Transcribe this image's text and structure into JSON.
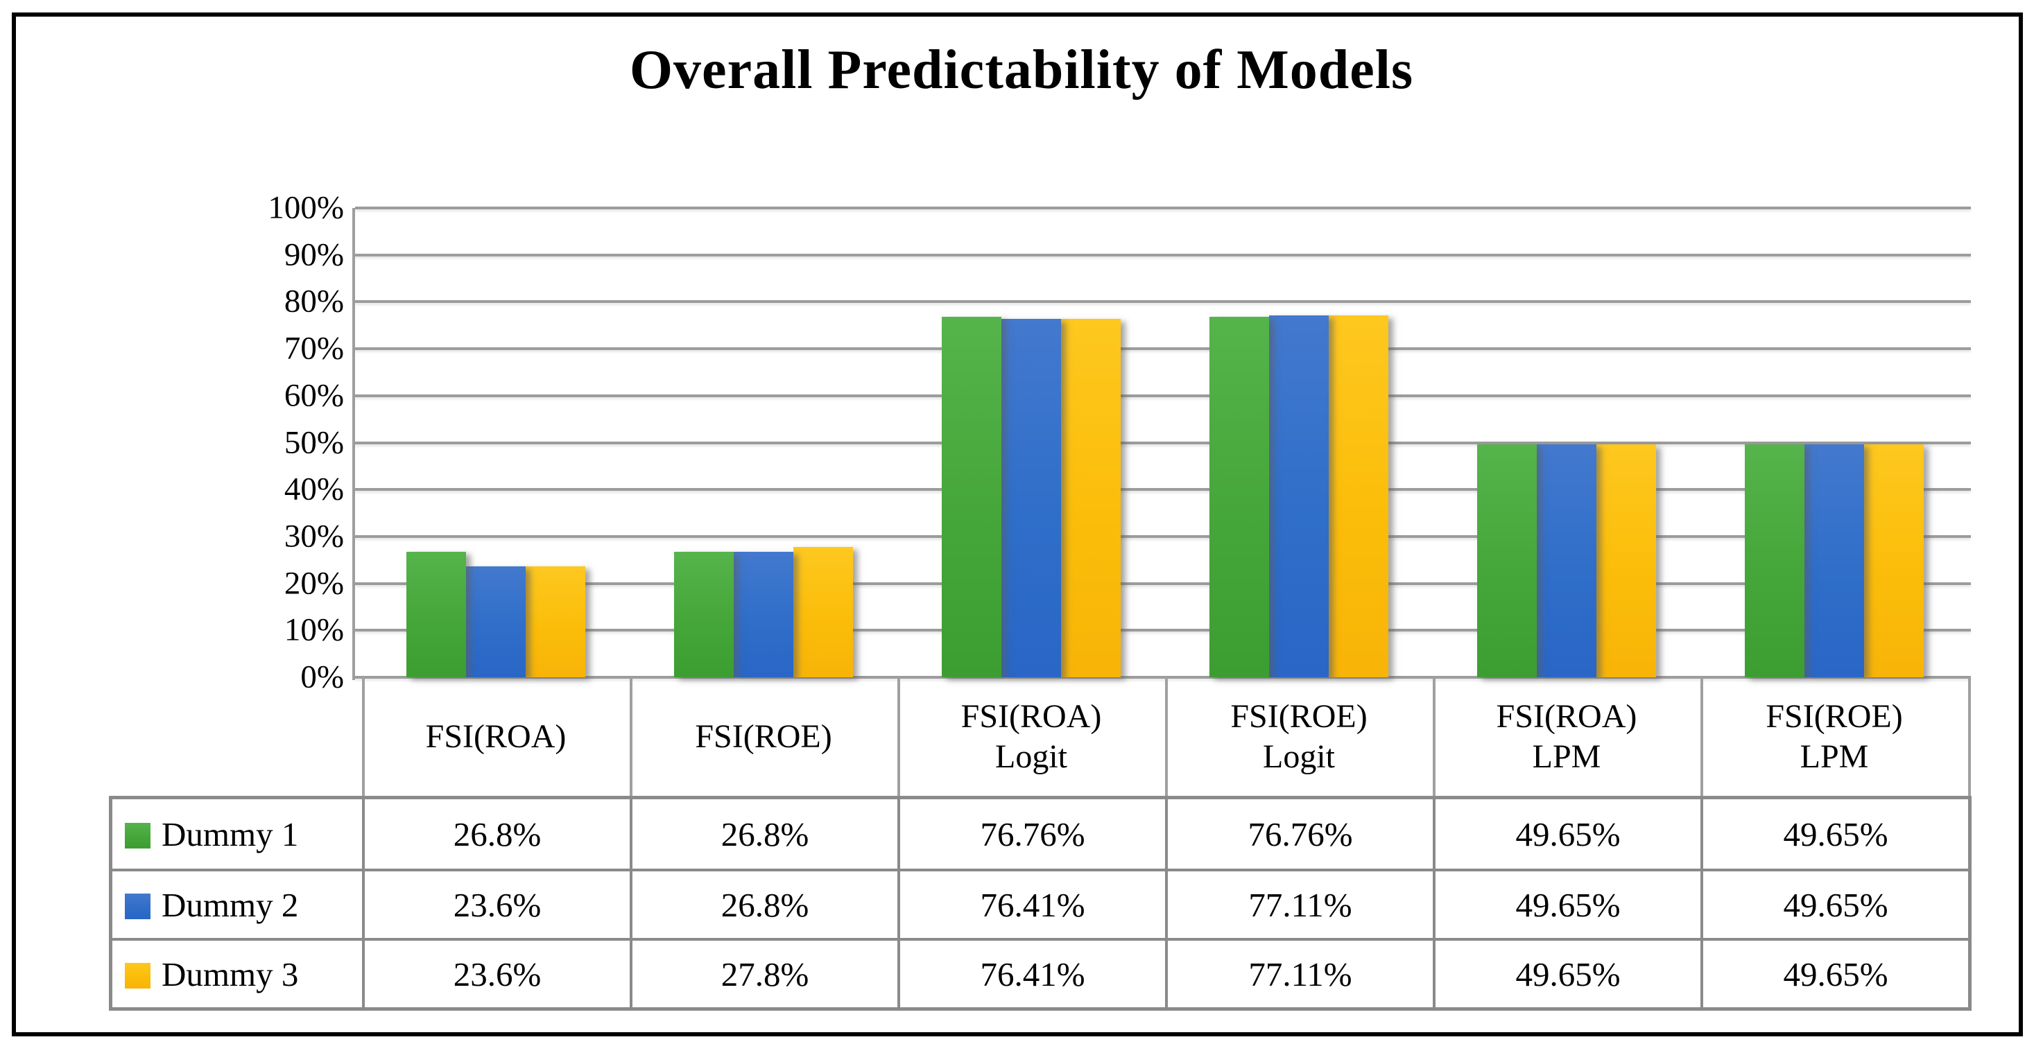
{
  "chart": {
    "title": "Overall Predictability of Models"
  },
  "chart_data": {
    "type": "bar",
    "title": "Overall Predictability of Models",
    "xlabel": "",
    "ylabel": "",
    "ylim": [
      0,
      100
    ],
    "ytick_step_percent": 10,
    "yticks": [
      "100%",
      "90%",
      "80%",
      "70%",
      "60%",
      "50%",
      "40%",
      "30%",
      "20%",
      "10%",
      "0%"
    ],
    "grid": true,
    "legend_position": "table-left",
    "categories": [
      "FSI(ROA)",
      "FSI(ROE)",
      "FSI(ROA) Logit",
      "FSI(ROE) Logit",
      "FSI(ROA) LPM",
      "FSI(ROE) LPM"
    ],
    "series": [
      {
        "name": "Dummy 1",
        "values": [
          26.8,
          26.8,
          76.76,
          76.76,
          49.65,
          49.65
        ],
        "color": "#45A639",
        "color_top": "#55B44B",
        "color_bottom": "#3C9E31"
      },
      {
        "name": "Dummy 2",
        "values": [
          23.6,
          26.8,
          76.41,
          77.11,
          49.65,
          49.65
        ],
        "color": "#2F6EC9",
        "color_top": "#4379CE",
        "color_bottom": "#2A66C6"
      },
      {
        "name": "Dummy 3",
        "values": [
          23.6,
          27.8,
          76.41,
          77.11,
          49.65,
          49.65
        ],
        "color": "#FBBD09",
        "color_top": "#FEC81F",
        "color_bottom": "#F8B408"
      }
    ]
  },
  "x_axis": {
    "tick_lines": [
      [
        "FSI(ROA)"
      ],
      [
        "FSI(ROE)"
      ],
      [
        "FSI(ROA)",
        "Logit"
      ],
      [
        "FSI(ROE)",
        "Logit"
      ],
      [
        "FSI(ROA)",
        "LPM"
      ],
      [
        "FSI(ROE)",
        "LPM"
      ]
    ]
  },
  "data_table": {
    "rows": [
      {
        "legend": "Dummy 1",
        "marker_color": "#45A639",
        "values": [
          "26.8%",
          "26.8%",
          "76.76%",
          "76.76%",
          "49.65%",
          "49.65%"
        ]
      },
      {
        "legend": "Dummy 2",
        "marker_color": "#2F6EC9",
        "values": [
          "23.6%",
          "26.8%",
          "76.41%",
          "77.11%",
          "49.65%",
          "49.65%"
        ]
      },
      {
        "legend": "Dummy 3",
        "marker_color": "#FBBD09",
        "values": [
          "23.6%",
          "27.8%",
          "76.41%",
          "77.11%",
          "49.65%",
          "49.65%"
        ]
      }
    ]
  }
}
